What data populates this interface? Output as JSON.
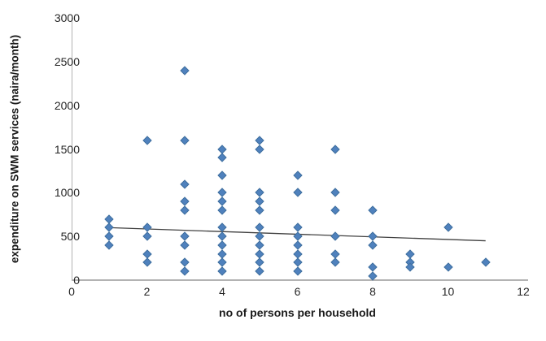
{
  "chart": {
    "y_axis_title": "expenditure on SWM services (naira/month)",
    "x_axis_title": "no of persons per household",
    "colors": {
      "marker": "#4f81bd",
      "marker_edge": "#42719f",
      "trendline": "#404040",
      "axis_line": "#b3b3b3",
      "tick_text": "#262626"
    }
  },
  "chart_data": {
    "type": "scatter",
    "title": "",
    "xlabel": "no of persons per household",
    "ylabel": "expenditure on SWM services (naira/month)",
    "xlim": [
      0,
      12
    ],
    "ylim": [
      0,
      3000
    ],
    "x_ticks": [
      0,
      2,
      4,
      6,
      8,
      10,
      12
    ],
    "y_ticks": [
      0,
      500,
      1000,
      1500,
      2000,
      2500,
      3000
    ],
    "grid": false,
    "legend": false,
    "marker": "diamond",
    "points": [
      [
        1,
        700
      ],
      [
        1,
        600
      ],
      [
        1,
        500
      ],
      [
        1,
        400
      ],
      [
        2,
        1600
      ],
      [
        2,
        600
      ],
      [
        2,
        500
      ],
      [
        2,
        300
      ],
      [
        2,
        200
      ],
      [
        3,
        2400
      ],
      [
        3,
        1600
      ],
      [
        3,
        1100
      ],
      [
        3,
        900
      ],
      [
        3,
        800
      ],
      [
        3,
        500
      ],
      [
        3,
        400
      ],
      [
        3,
        200
      ],
      [
        3,
        100
      ],
      [
        4,
        1500
      ],
      [
        4,
        1400
      ],
      [
        4,
        1200
      ],
      [
        4,
        1000
      ],
      [
        4,
        900
      ],
      [
        4,
        800
      ],
      [
        4,
        600
      ],
      [
        4,
        500
      ],
      [
        4,
        400
      ],
      [
        4,
        300
      ],
      [
        4,
        200
      ],
      [
        4,
        100
      ],
      [
        5,
        1600
      ],
      [
        5,
        1500
      ],
      [
        5,
        1000
      ],
      [
        5,
        900
      ],
      [
        5,
        800
      ],
      [
        5,
        600
      ],
      [
        5,
        500
      ],
      [
        5,
        400
      ],
      [
        5,
        300
      ],
      [
        5,
        200
      ],
      [
        5,
        100
      ],
      [
        6,
        1200
      ],
      [
        6,
        1000
      ],
      [
        6,
        600
      ],
      [
        6,
        500
      ],
      [
        6,
        400
      ],
      [
        6,
        300
      ],
      [
        6,
        200
      ],
      [
        6,
        100
      ],
      [
        7,
        1500
      ],
      [
        7,
        1000
      ],
      [
        7,
        800
      ],
      [
        7,
        500
      ],
      [
        7,
        300
      ],
      [
        7,
        200
      ],
      [
        8,
        800
      ],
      [
        8,
        500
      ],
      [
        8,
        400
      ],
      [
        8,
        150
      ],
      [
        8,
        50
      ],
      [
        9,
        300
      ],
      [
        9,
        200
      ],
      [
        9,
        150
      ],
      [
        10,
        600
      ],
      [
        10,
        150
      ],
      [
        11,
        200
      ]
    ],
    "trendline": {
      "type": "linear",
      "x1": 1,
      "y1": 600,
      "x2": 11,
      "y2": 450
    }
  }
}
